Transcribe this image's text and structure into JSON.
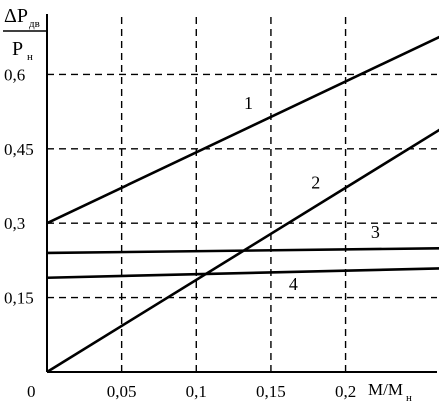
{
  "chart_data": {
    "type": "line",
    "ylabel": {
      "numerator_main": "ΔP",
      "numerator_sub": "дв",
      "denominator_main": "P",
      "denominator_sub": "н"
    },
    "xlabel": {
      "main": "M/M",
      "sub": "н"
    },
    "origin_label": "0",
    "x_ticks": [
      {
        "value": 0.05,
        "label": "0,05"
      },
      {
        "value": 0.1,
        "label": "0,1"
      },
      {
        "value": 0.15,
        "label": "0,15"
      },
      {
        "value": 0.2,
        "label": "0,2"
      }
    ],
    "y_ticks": [
      {
        "value": 0.15,
        "label": "0,15"
      },
      {
        "value": 0.3,
        "label": "0,3"
      },
      {
        "value": 0.45,
        "label": "0,45"
      },
      {
        "value": 0.6,
        "label": "0,6"
      }
    ],
    "xlim": [
      0,
      0.28
    ],
    "ylim": [
      0,
      0.75
    ],
    "grid": true,
    "series": [
      {
        "name": "1",
        "x": [
          0,
          0.28
        ],
        "y": [
          0.3,
          0.7
        ],
        "label_at": [
          0.135,
          0.53
        ]
      },
      {
        "name": "2",
        "x": [
          0,
          0.28
        ],
        "y": [
          0.0,
          0.52
        ],
        "label_at": [
          0.18,
          0.37
        ]
      },
      {
        "name": "3",
        "x": [
          0,
          0.28
        ],
        "y": [
          0.24,
          0.25
        ],
        "label_at": [
          0.22,
          0.27
        ]
      },
      {
        "name": "4",
        "x": [
          0,
          0.28
        ],
        "y": [
          0.19,
          0.21
        ],
        "label_at": [
          0.165,
          0.165
        ]
      }
    ]
  }
}
